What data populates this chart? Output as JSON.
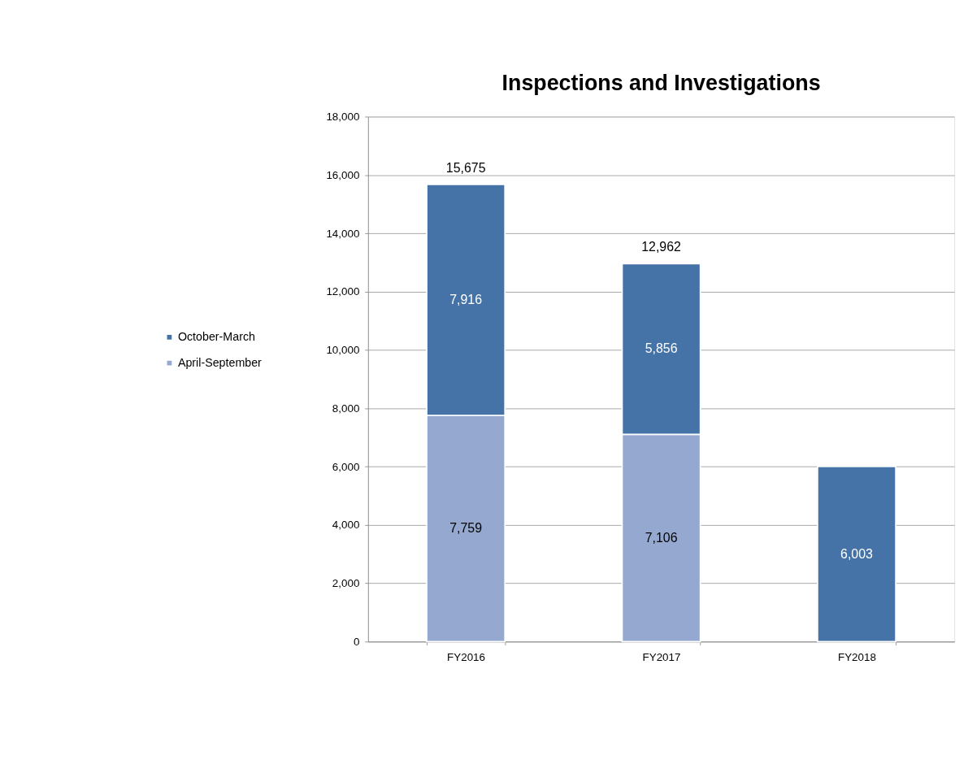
{
  "chart_data": {
    "type": "bar",
    "title": "Inspections and Investigations",
    "categories": [
      "FY2016",
      "FY2017",
      "FY2018"
    ],
    "series": [
      {
        "name": "April-September",
        "color": "#95a9d0",
        "values": [
          7759,
          7106,
          null
        ],
        "value_labels": [
          "7,759",
          "7,106",
          null
        ]
      },
      {
        "name": "October-March",
        "color": "#4573a7",
        "values": [
          7916,
          5856,
          6003
        ],
        "value_labels": [
          "7,916",
          "5,856",
          "6,003"
        ]
      }
    ],
    "stacked": true,
    "totals": [
      "15,675",
      "12,962",
      null
    ],
    "ylim": [
      0,
      18000
    ],
    "yticks": [
      0,
      {
        "value": 2000,
        "label": "2,000"
      },
      {
        "value": 4000,
        "label": "4,000"
      },
      {
        "value": 6000,
        "label": "6,000"
      },
      {
        "value": 8000,
        "label": "8,000"
      },
      {
        "value": 10000,
        "label": "10,000"
      },
      {
        "value": 12000,
        "label": "12,000"
      },
      {
        "value": 14000,
        "label": "14,000"
      },
      {
        "value": 16000,
        "label": "16,000"
      },
      {
        "value": 18000,
        "label": "18,000"
      }
    ],
    "grid": "y",
    "legend": "left"
  }
}
